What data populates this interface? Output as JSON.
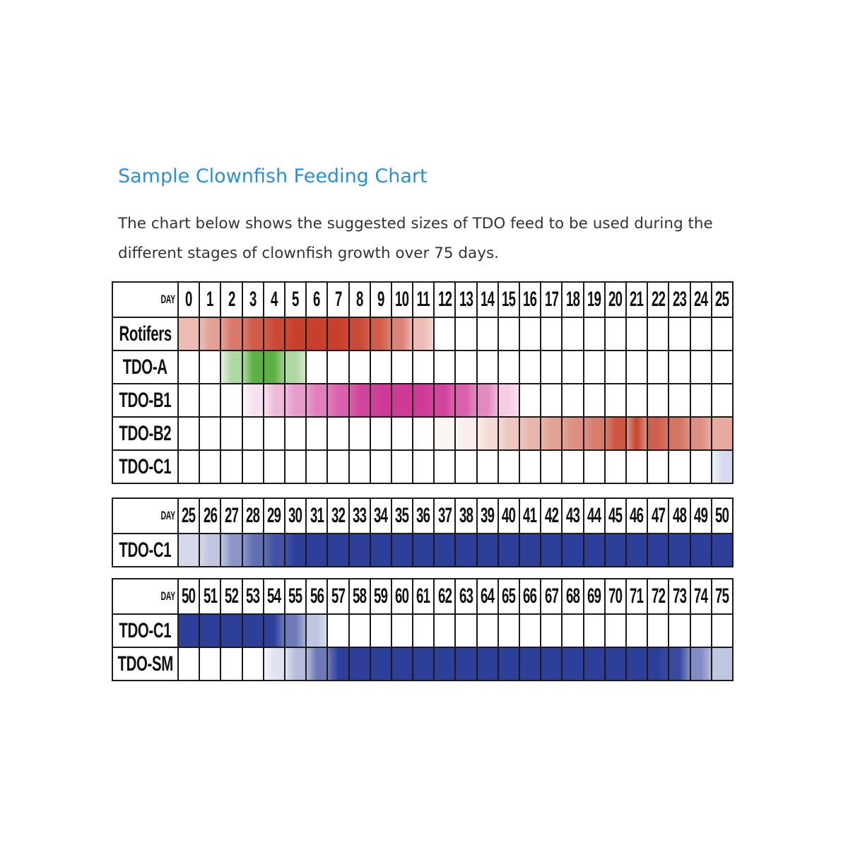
{
  "header": {
    "title": "Sample Clownfish Feeding Chart",
    "description": "The chart below shows the suggested sizes of TDO feed to be used during the different stages of clownfish growth over 75 days."
  },
  "colors": {
    "title": "#2a8fd6",
    "rotifers": "#c8402c",
    "tdo_a": "#5db043",
    "tdo_b1": "#cf3a96",
    "tdo_b2": "#c5452e",
    "tdo_c1": "#2e3f99",
    "tdo_sm": "#2e3f99",
    "grid_line": "#1a1a1a"
  },
  "chart_data": {
    "type": "table",
    "title": "Sample Clownfish Feeding Chart",
    "xlabel": "DAY",
    "note": "Cell values are shading intensity (0 = empty, 1 = full color) per feed per day",
    "panels": [
      {
        "day_label": "DAY",
        "days": [
          0,
          1,
          2,
          3,
          4,
          5,
          6,
          7,
          8,
          9,
          10,
          11,
          12,
          13,
          14,
          15,
          16,
          17,
          18,
          19,
          20,
          21,
          22,
          23,
          24,
          25
        ],
        "series": [
          {
            "name": "Rotifers",
            "color": "#c8402c",
            "values": [
              0.35,
              0.5,
              0.7,
              0.85,
              0.95,
              1,
              1,
              1,
              0.95,
              0.85,
              0.65,
              0.35,
              0,
              0,
              0,
              0,
              0,
              0,
              0,
              0,
              0,
              0,
              0,
              0,
              0,
              0
            ]
          },
          {
            "name": "TDO-A",
            "color": "#5db043",
            "values": [
              0,
              0,
              0.5,
              1,
              1,
              0.5,
              0,
              0,
              0,
              0,
              0,
              0,
              0,
              0,
              0,
              0,
              0,
              0,
              0,
              0,
              0,
              0,
              0,
              0,
              0,
              0
            ]
          },
          {
            "name": "TDO-B1",
            "color": "#cf3a96",
            "values": [
              0,
              0,
              0,
              0.15,
              0.35,
              0.5,
              0.65,
              0.8,
              0.95,
              1,
              1,
              1,
              0.95,
              0.8,
              0.6,
              0.25,
              0,
              0,
              0,
              0,
              0,
              0,
              0,
              0,
              0,
              0
            ]
          },
          {
            "name": "TDO-B2",
            "color": "#c5452e",
            "values": [
              0,
              0,
              0,
              0,
              0,
              0,
              0,
              0,
              0,
              0,
              0,
              0,
              0.05,
              0.1,
              0.2,
              0.3,
              0.4,
              0.5,
              0.6,
              0.7,
              0.9,
              1,
              0.85,
              0.75,
              0.6,
              0.45
            ]
          },
          {
            "name": "TDO-C1",
            "color": "#2e3f99",
            "values": [
              0,
              0,
              0,
              0,
              0,
              0,
              0,
              0,
              0,
              0,
              0,
              0,
              0,
              0,
              0,
              0,
              0,
              0,
              0,
              0,
              0,
              0,
              0,
              0,
              0,
              0.2
            ]
          }
        ]
      },
      {
        "day_label": "DAY",
        "days": [
          25,
          26,
          27,
          28,
          29,
          30,
          31,
          32,
          33,
          34,
          35,
          36,
          37,
          38,
          39,
          40,
          41,
          42,
          43,
          44,
          45,
          46,
          47,
          48,
          49,
          50
        ],
        "series": [
          {
            "name": "TDO-C1",
            "color": "#2e3f99",
            "values": [
              0.2,
              0.3,
              0.55,
              0.75,
              0.9,
              1,
              1,
              1,
              1,
              1,
              1,
              1,
              1,
              1,
              1,
              1,
              1,
              1,
              1,
              1,
              1,
              1,
              1,
              1,
              1,
              1
            ]
          }
        ]
      },
      {
        "day_label": "DAY",
        "days": [
          50,
          51,
          52,
          53,
          54,
          55,
          56,
          57,
          58,
          59,
          60,
          61,
          62,
          63,
          64,
          65,
          66,
          67,
          68,
          69,
          70,
          71,
          72,
          73,
          74,
          75
        ],
        "series": [
          {
            "name": "TDO-C1",
            "color": "#2e3f99",
            "values": [
              1,
              1,
              1,
              1,
              1,
              0.7,
              0.3,
              0,
              0,
              0,
              0,
              0,
              0,
              0,
              0,
              0,
              0,
              0,
              0,
              0,
              0,
              0,
              0,
              0,
              0,
              0
            ]
          },
          {
            "name": "TDO-SM",
            "color": "#2e3f99",
            "values": [
              0,
              0,
              0,
              0,
              0.15,
              0.35,
              0.7,
              1,
              1,
              1,
              1,
              1,
              1,
              1,
              1,
              1,
              1,
              1,
              1,
              1,
              1,
              1,
              1,
              0.95,
              0.6,
              0.3
            ]
          }
        ]
      }
    ]
  }
}
